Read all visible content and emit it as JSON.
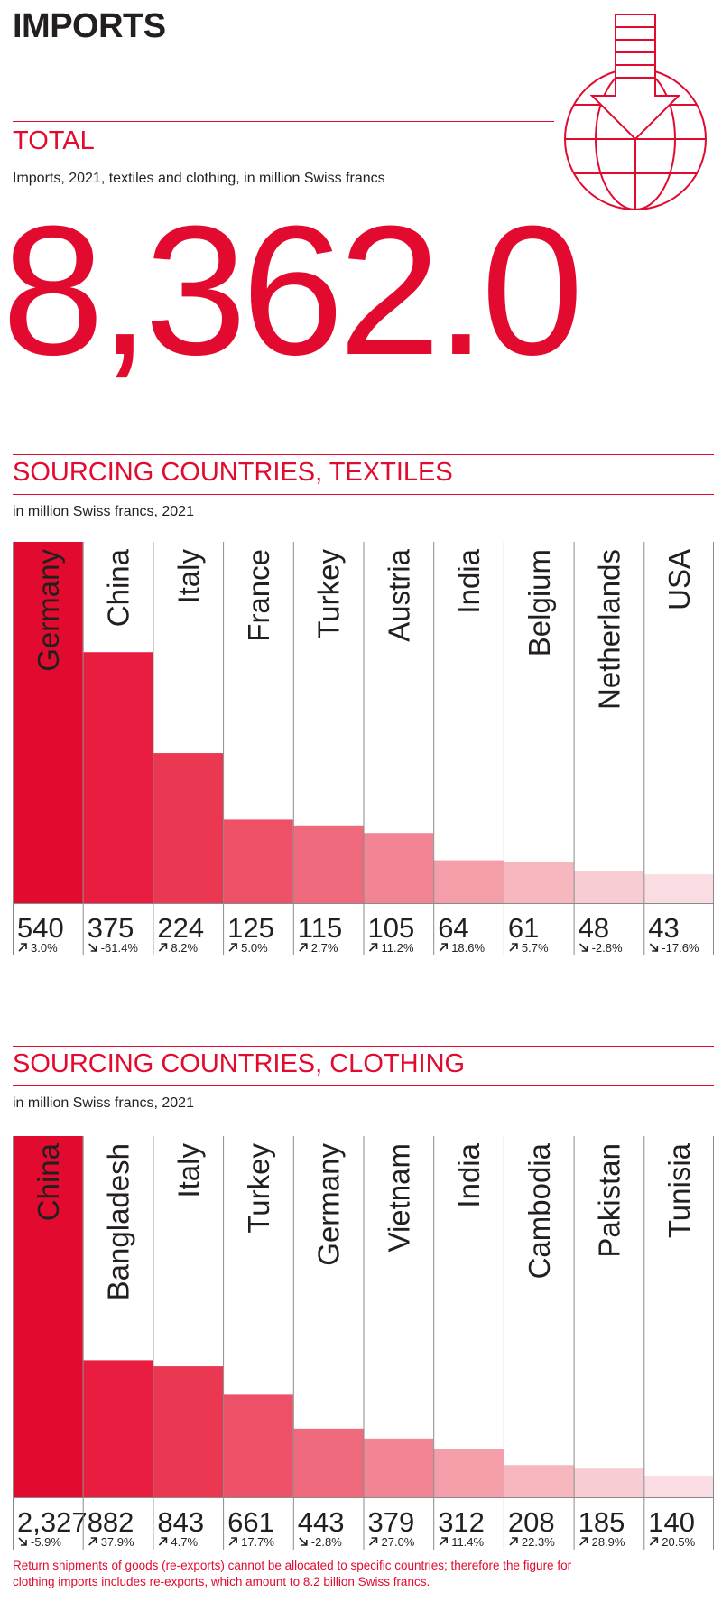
{
  "page": {
    "header": "IMPORTS",
    "total": {
      "title": "TOTAL",
      "subtitle": "Imports, 2021, textiles and clothing, in million Swiss francs",
      "value": "8,362.0"
    },
    "footnote": "Return shipments of goods (re-exports) cannot be allocated to specific countries; therefore the figure for clothing imports includes re-exports, which amount to 8.2 billion Swiss francs."
  },
  "colors": {
    "accent": "#e30a2f",
    "bar_shades": [
      "#e30a2f",
      "#e81d3f",
      "#eb3852",
      "#ee5068",
      "#f06a7d",
      "#f28594",
      "#f49ea9",
      "#f6b7bf",
      "#f8ccd3",
      "#fadde2"
    ]
  },
  "chart_data": [
    {
      "type": "bar",
      "title": "SOURCING COUNTRIES, TEXTILES",
      "subtitle": "in million Swiss francs, 2021",
      "categories": [
        "Germany",
        "China",
        "Italy",
        "France",
        "Turkey",
        "Austria",
        "India",
        "Belgium",
        "Netherlands",
        "USA"
      ],
      "values": [
        540,
        375,
        224,
        125,
        115,
        105,
        64,
        61,
        48,
        43
      ],
      "value_labels": [
        "540",
        "375",
        "224",
        "125",
        "115",
        "105",
        "64",
        "61",
        "48",
        "43"
      ],
      "changes": [
        "3.0%",
        "-61.4%",
        "8.2%",
        "5.0%",
        "2.7%",
        "11.2%",
        "18.6%",
        "5.7%",
        "-2.8%",
        "-17.6%"
      ],
      "change_direction": [
        "up",
        "down",
        "up",
        "up",
        "up",
        "up",
        "up",
        "up",
        "down",
        "down"
      ],
      "ylim": [
        0,
        540
      ]
    },
    {
      "type": "bar",
      "title": "SOURCING COUNTRIES, CLOTHING",
      "subtitle": "in million Swiss francs, 2021",
      "categories": [
        "China",
        "Bangladesh",
        "Italy",
        "Turkey",
        "Germany",
        "Vietnam",
        "India",
        "Cambodia",
        "Pakistan",
        "Tunisia"
      ],
      "values": [
        2327,
        882,
        843,
        661,
        443,
        379,
        312,
        208,
        185,
        140
      ],
      "value_labels": [
        "2,327",
        "882",
        "843",
        "661",
        "443",
        "379",
        "312",
        "208",
        "185",
        "140"
      ],
      "changes": [
        "-5.9%",
        "37.9%",
        "4.7%",
        "17.7%",
        "-2.8%",
        "27.0%",
        "11.4%",
        "22.3%",
        "28.9%",
        "20.5%"
      ],
      "change_direction": [
        "down",
        "up",
        "up",
        "up",
        "down",
        "up",
        "up",
        "up",
        "up",
        "up"
      ],
      "ylim": [
        0,
        2327
      ]
    }
  ]
}
